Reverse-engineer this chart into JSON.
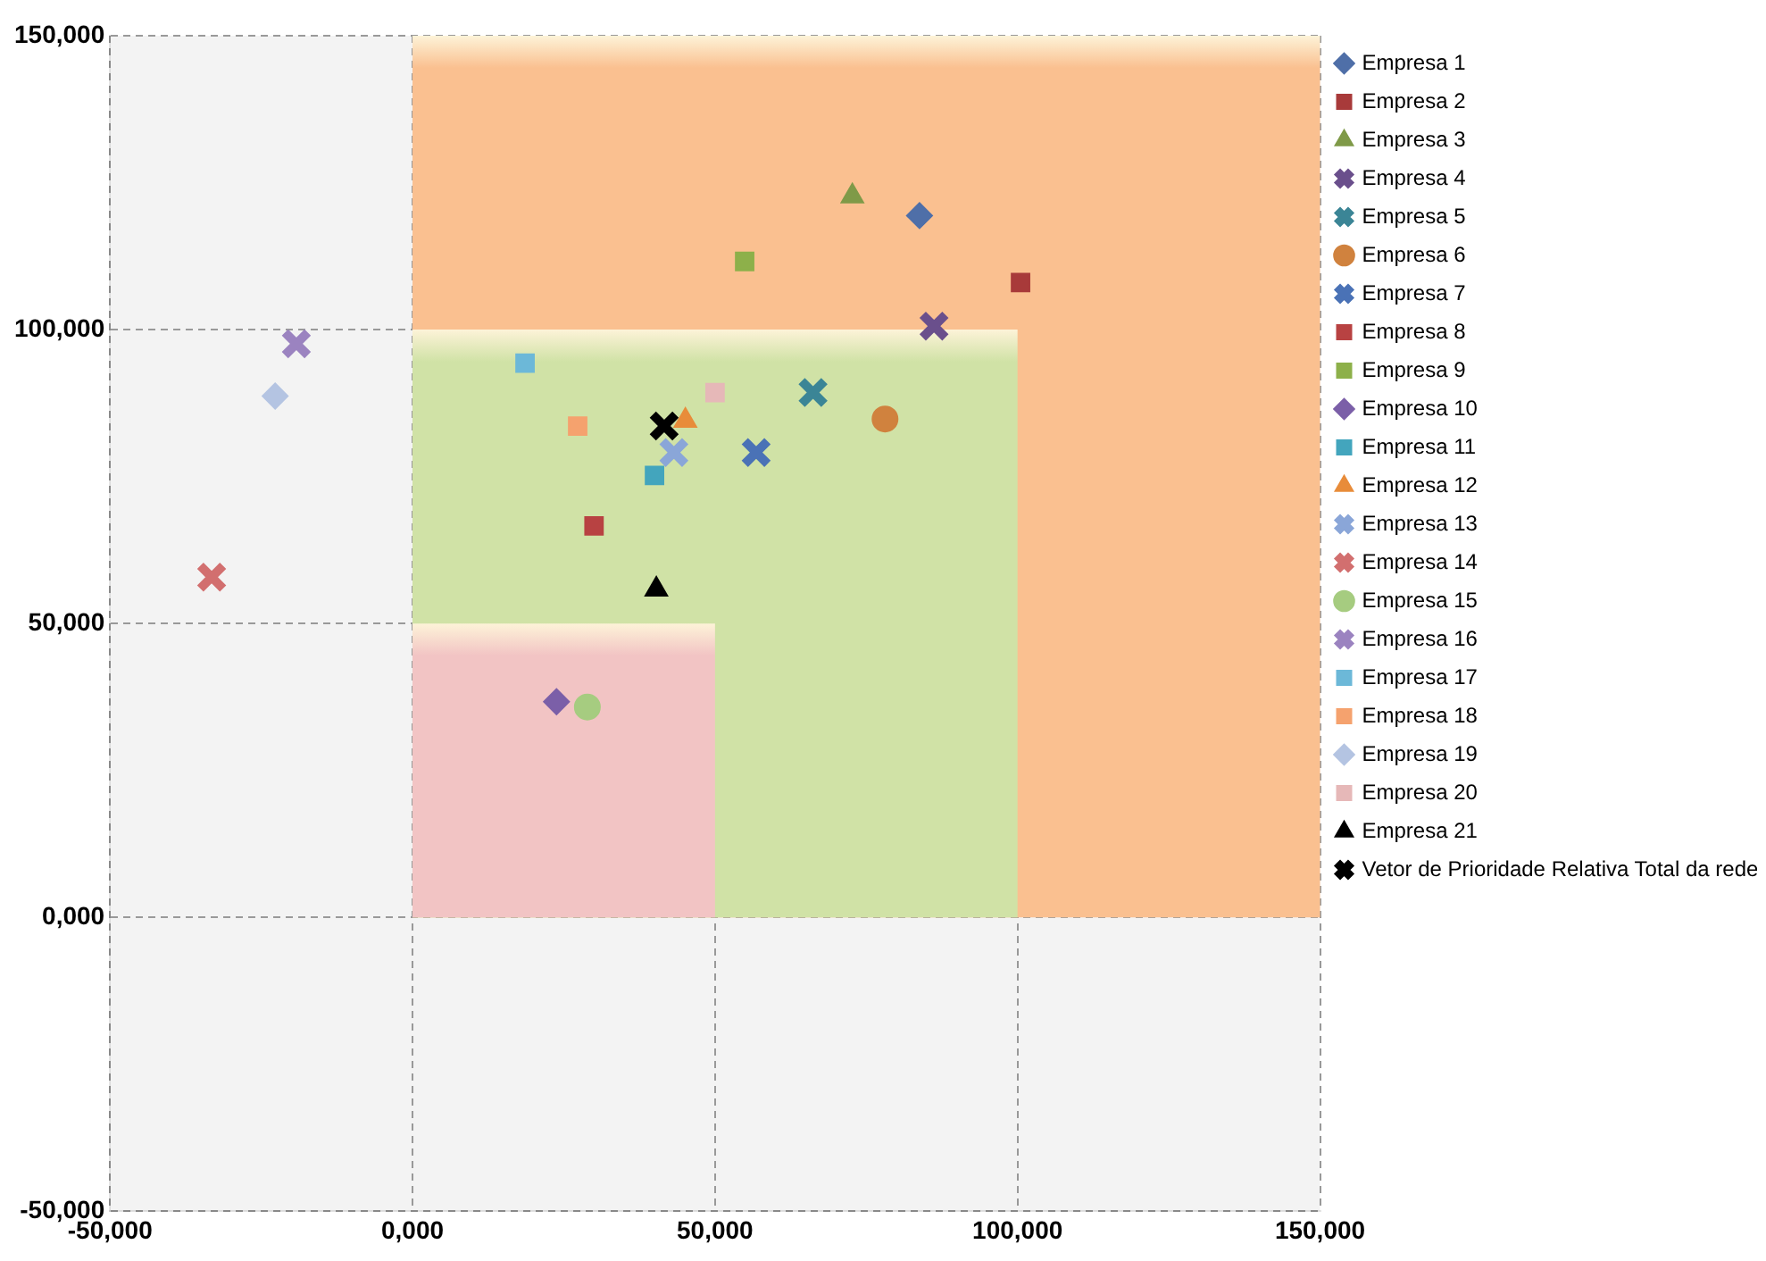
{
  "chart_data": {
    "type": "scatter",
    "xlim": [
      -50,
      150
    ],
    "ylim": [
      -50,
      150
    ],
    "xticks": [
      {
        "value": -50,
        "label": "-50,000"
      },
      {
        "value": 0,
        "label": "0,000"
      },
      {
        "value": 50,
        "label": "50,000"
      },
      {
        "value": 100,
        "label": "100,000"
      },
      {
        "value": 150,
        "label": "150,000"
      }
    ],
    "yticks": [
      {
        "value": -50,
        "label": "-50,000"
      },
      {
        "value": 0,
        "label": "0,000"
      },
      {
        "value": 50,
        "label": "50,000"
      },
      {
        "value": 100,
        "label": "100,000"
      },
      {
        "value": 150,
        "label": "150,000"
      }
    ],
    "grid": true,
    "legend": "right",
    "bands": [
      {
        "axis": "x",
        "from": 0,
        "to": 150,
        "color": "#fac090"
      },
      {
        "axis": "x",
        "from": 0,
        "to": 100,
        "color": "#d0e2a6"
      },
      {
        "axis": "x",
        "from": 0,
        "to": 50,
        "color": "#f2c4c4"
      }
    ],
    "series": [
      {
        "name": "Empresa 1",
        "color": "#4f6fa8",
        "marker": "diamond",
        "x": [
          83.8
        ],
        "values": [
          119.4
        ]
      },
      {
        "name": "Empresa 2",
        "color": "#a83a3a",
        "marker": "square",
        "x": [
          100.5
        ],
        "values": [
          108
        ]
      },
      {
        "name": "Empresa 3",
        "color": "#7f9a48",
        "marker": "triangle",
        "x": [
          72.7
        ],
        "values": [
          122.7
        ]
      },
      {
        "name": "Empresa 4",
        "color": "#6a4f8c",
        "marker": "cross",
        "x": [
          86.2
        ],
        "values": [
          100.6
        ]
      },
      {
        "name": "Empresa 5",
        "color": "#3b8596",
        "marker": "cross",
        "x": [
          66.2
        ],
        "values": [
          89.3
        ]
      },
      {
        "name": "Empresa 6",
        "color": "#d0823e",
        "marker": "circle",
        "x": [
          78.1
        ],
        "values": [
          84.8
        ]
      },
      {
        "name": "Empresa 7",
        "color": "#4a72b6",
        "marker": "cross",
        "x": [
          56.8
        ],
        "values": [
          79.1
        ]
      },
      {
        "name": "Empresa 8",
        "color": "#b84242",
        "marker": "square",
        "x": [
          30
        ],
        "values": [
          66.6
        ]
      },
      {
        "name": "Empresa 9",
        "color": "#8db04a",
        "marker": "square",
        "x": [
          54.9
        ],
        "values": [
          111.6
        ]
      },
      {
        "name": "Empresa 10",
        "color": "#7b5fa8",
        "marker": "diamond",
        "x": [
          23.8
        ],
        "values": [
          36.7
        ]
      },
      {
        "name": "Empresa 11",
        "color": "#43a5bd",
        "marker": "square",
        "x": [
          40
        ],
        "values": [
          75.2
        ]
      },
      {
        "name": "Empresa 12",
        "color": "#e88c3a",
        "marker": "triangle",
        "x": [
          45.1
        ],
        "values": [
          84.5
        ]
      },
      {
        "name": "Empresa 13",
        "color": "#8aa6d8",
        "marker": "cross",
        "x": [
          43.2
        ],
        "values": [
          79.1
        ]
      },
      {
        "name": "Empresa 14",
        "color": "#d26f6f",
        "marker": "cross",
        "x": [
          -33.2
        ],
        "values": [
          57.9
        ]
      },
      {
        "name": "Empresa 15",
        "color": "#a6cc80",
        "marker": "circle",
        "x": [
          28.9
        ],
        "values": [
          35.8
        ]
      },
      {
        "name": "Empresa 16",
        "color": "#9b83c0",
        "marker": "cross",
        "x": [
          -19.2
        ],
        "values": [
          97.6
        ]
      },
      {
        "name": "Empresa 17",
        "color": "#6cb8d8",
        "marker": "square",
        "x": [
          18.6
        ],
        "values": [
          94.3
        ]
      },
      {
        "name": "Empresa 18",
        "color": "#f5a26e",
        "marker": "square",
        "x": [
          27.3
        ],
        "values": [
          83.6
        ]
      },
      {
        "name": "Empresa 19",
        "color": "#b4c4e2",
        "marker": "diamond",
        "x": [
          -22.7
        ],
        "values": [
          88.7
        ]
      },
      {
        "name": "Empresa 20",
        "color": "#e6b8b8",
        "marker": "square",
        "x": [
          50
        ],
        "values": [
          89.3
        ]
      },
      {
        "name": "Empresa 21",
        "color": "#000000",
        "marker": "triangle",
        "x": [
          40.3
        ],
        "values": [
          55.8
        ]
      },
      {
        "name": "Vetor de Prioridade Relativa Total da rede",
        "color": "#000000",
        "marker": "cross",
        "x": [
          41.6
        ],
        "values": [
          83.6
        ]
      }
    ]
  }
}
